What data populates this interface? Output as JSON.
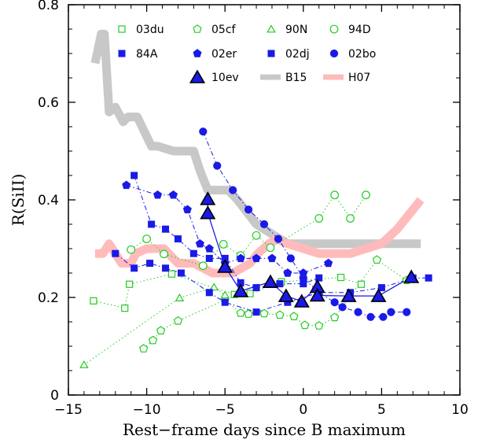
{
  "chart_data": {
    "type": "scatter",
    "title": "",
    "xlabel": "Rest−frame days since B maximum",
    "ylabel": "R(SiII)",
    "xlim": [
      -15,
      10
    ],
    "ylim": [
      0,
      0.8
    ],
    "x_ticks": [
      -15,
      -10,
      -5,
      0,
      5,
      10
    ],
    "x_tick_labels": [
      "−15",
      "−10",
      "−5",
      "0",
      "5",
      "10"
    ],
    "y_ticks": [
      0,
      0.2,
      0.4,
      0.6,
      0.8
    ],
    "y_tick_labels": [
      "0",
      "0.2",
      "0.4",
      "0.6",
      "0.8"
    ],
    "grid": false,
    "legend_position": "top",
    "series": [
      {
        "name": "03du",
        "color": "#22cc22",
        "marker": "square-open",
        "line": "dotted",
        "x": [
          -13.4,
          -11.4,
          -11.1,
          -8.4,
          -4.4,
          -3.4,
          -1.4,
          2.4,
          3.7
        ],
        "y": [
          0.193,
          0.178,
          0.227,
          0.248,
          0.206,
          0.208,
          0.232,
          0.241,
          0.227
        ]
      },
      {
        "name": "05cf",
        "color": "#22cc22",
        "marker": "pentagon-open",
        "line": "dotted",
        "x": [
          -10.2,
          -9.6,
          -9.1,
          -8.0,
          -5.0,
          -4.0,
          -3.5,
          -2.5,
          -1.5,
          -0.6,
          0.1,
          1.0,
          2.0,
          4.7,
          6.6
        ],
        "y": [
          0.095,
          0.112,
          0.132,
          0.152,
          0.195,
          0.168,
          0.166,
          0.167,
          0.164,
          0.161,
          0.143,
          0.142,
          0.159,
          0.277,
          0.235
        ]
      },
      {
        "name": "90N",
        "color": "#22cc22",
        "marker": "triangle-open",
        "line": "dotted",
        "x": [
          -14.0,
          -7.9,
          -5.7,
          -5.0
        ],
        "y": [
          0.062,
          0.199,
          0.221,
          0.205
        ]
      },
      {
        "name": "94D",
        "color": "#22cc22",
        "marker": "circle-open",
        "line": "dotted",
        "x": [
          -11.0,
          -10.0,
          -8.9,
          -6.4,
          -5.1,
          -4.0,
          -3.0,
          -2.1,
          1.0,
          2.0,
          3.0,
          4.0
        ],
        "y": [
          0.298,
          0.32,
          0.289,
          0.265,
          0.309,
          0.286,
          0.327,
          0.302,
          0.362,
          0.41,
          0.362,
          0.41
        ]
      },
      {
        "name": "84A",
        "color": "#1a1ae6",
        "marker": "square-filled",
        "line": "dashdot",
        "x": [
          -10.8,
          -9.7,
          -8.8,
          -8.0,
          -7.0,
          -6.0,
          -5.0,
          -4.0,
          -3.0,
          -1.5,
          0.0,
          1.0
        ],
        "y": [
          0.45,
          0.35,
          0.34,
          0.32,
          0.29,
          0.28,
          0.28,
          0.23,
          0.22,
          0.228,
          0.228,
          0.24
        ]
      },
      {
        "name": "02er",
        "color": "#1a1ae6",
        "marker": "pentagon-filled",
        "line": "dashdot",
        "x": [
          -11.3,
          -9.3,
          -8.3,
          -7.4,
          -6.6,
          -6.0,
          -5.0,
          -4.0,
          -3.0,
          -2.0,
          -1.0,
          0.0,
          1.6
        ],
        "y": [
          0.43,
          0.41,
          0.41,
          0.38,
          0.31,
          0.3,
          0.27,
          0.28,
          0.28,
          0.28,
          0.25,
          0.25,
          0.27
        ]
      },
      {
        "name": "02dj",
        "color": "#1a1ae6",
        "marker": "square-filled",
        "line": "dashdot",
        "x": [
          -12.0,
          -10.8,
          -9.8,
          -8.8,
          -7.8,
          -6.0,
          -5.0,
          -3.0,
          -1.0,
          1.0,
          3.0,
          5.0,
          7.0,
          8.0
        ],
        "y": [
          0.29,
          0.26,
          0.27,
          0.26,
          0.25,
          0.21,
          0.19,
          0.17,
          0.19,
          0.21,
          0.21,
          0.22,
          0.24,
          0.24
        ]
      },
      {
        "name": "02bo",
        "color": "#1a1ae6",
        "marker": "circle-filled",
        "line": "dashdot",
        "x": [
          -6.4,
          -5.5,
          -4.5,
          -3.5,
          -2.5,
          -1.6,
          -0.8,
          0.0,
          1.0,
          2.0,
          2.5,
          3.5,
          4.3,
          5.1,
          5.6,
          6.6
        ],
        "y": [
          0.54,
          0.47,
          0.42,
          0.38,
          0.35,
          0.32,
          0.28,
          0.24,
          0.21,
          0.19,
          0.18,
          0.17,
          0.16,
          0.16,
          0.17,
          0.17
        ]
      },
      {
        "name": "10ev",
        "color": "#1a1ae6",
        "marker": "triangle-filled-large",
        "line": "solid",
        "x": [
          -6.1,
          -6.1,
          -5.0,
          -4.0,
          -2.1,
          -1.1,
          -0.1,
          0.9,
          0.9,
          2.9,
          4.8,
          6.9
        ],
        "y": [
          0.402,
          0.373,
          0.263,
          0.213,
          0.232,
          0.203,
          0.192,
          0.222,
          0.204,
          0.203,
          0.203,
          0.242
        ]
      },
      {
        "name": "B15",
        "color": "#c8c8c8",
        "marker": "none",
        "line": "thick",
        "x": [
          -13.3,
          -12.9,
          -12.7,
          -12.4,
          -12.0,
          -11.5,
          -11.2,
          -10.6,
          -10.3,
          -9.7,
          -9.3,
          -8.3,
          -7.9,
          -7.0,
          -6.6,
          -6.1,
          -5.6,
          -4.8,
          -4.2,
          -3.0,
          -2.0,
          -1.0,
          0.0,
          2.0,
          4.0,
          6.0,
          7.5
        ],
        "y": [
          0.68,
          0.74,
          0.74,
          0.58,
          0.59,
          0.56,
          0.57,
          0.57,
          0.55,
          0.51,
          0.51,
          0.5,
          0.5,
          0.5,
          0.46,
          0.42,
          0.42,
          0.42,
          0.4,
          0.35,
          0.33,
          0.31,
          0.31,
          0.31,
          0.31,
          0.31,
          0.31
        ]
      },
      {
        "name": "H07",
        "color": "#ffbbbb",
        "marker": "none",
        "line": "thick",
        "x": [
          -13.3,
          -12.8,
          -12.4,
          -11.6,
          -11.0,
          -10.7,
          -10.0,
          -8.9,
          -8.0,
          -7.0,
          -5.8,
          -4.5,
          -3.4,
          -2.9,
          -2.2,
          -1.7,
          -1.0,
          0.0,
          1.0,
          2.0,
          3.0,
          4.0,
          5.0,
          6.0,
          7.5
        ],
        "y": [
          0.29,
          0.29,
          0.31,
          0.27,
          0.27,
          0.29,
          0.3,
          0.3,
          0.27,
          0.27,
          0.25,
          0.25,
          0.27,
          0.29,
          0.31,
          0.32,
          0.31,
          0.3,
          0.29,
          0.29,
          0.29,
          0.3,
          0.31,
          0.34,
          0.4
        ]
      }
    ]
  }
}
